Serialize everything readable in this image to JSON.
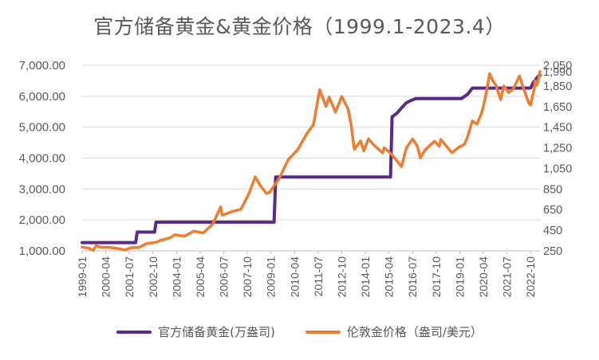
{
  "chart_data": {
    "type": "line",
    "title": "官方储备黄金&黄金价格（1999.1-2023.4）",
    "x_tick_labels": [
      "1999-01",
      "2000-04",
      "2001-07",
      "2002-10",
      "2004-01",
      "2005-04",
      "2006-07",
      "2007-10",
      "2009-01",
      "2010-04",
      "2011-07",
      "2012-10",
      "2014-01",
      "2015-04",
      "2016-07",
      "2017-10",
      "2019-01",
      "2020-04",
      "2021-07",
      "2022-10"
    ],
    "y_left": {
      "min": 1000,
      "max": 7000,
      "ticks": [
        "1,000.00",
        "2,000.00",
        "3,000.00",
        "4,000.00",
        "5,000.00",
        "6,000.00",
        "7,000.00"
      ]
    },
    "y_right": {
      "min": 250,
      "max": 2050,
      "ticks": [
        "250",
        "450",
        "650",
        "850",
        "1,050",
        "1,250",
        "1,450",
        "1,650",
        "1,850",
        "1,990",
        "2,050"
      ]
    },
    "grid": "horizontal",
    "legend_position": "bottom",
    "series": [
      {
        "name": "官方储备黄金(万盎司)",
        "axis": "left",
        "color": "#5b2a86",
        "points": [
          [
            "1999-01",
            1267
          ],
          [
            "2001-11",
            1267
          ],
          [
            "2001-12",
            1608
          ],
          [
            "2002-11",
            1608
          ],
          [
            "2002-12",
            1929
          ],
          [
            "2009-03",
            1929
          ],
          [
            "2009-04",
            3389
          ],
          [
            "2015-05",
            3389
          ],
          [
            "2015-06",
            5332
          ],
          [
            "2015-09",
            5447
          ],
          [
            "2015-12",
            5623
          ],
          [
            "2016-03",
            5786
          ],
          [
            "2016-06",
            5862
          ],
          [
            "2016-09",
            5924
          ],
          [
            "2016-12",
            5924
          ],
          [
            "2019-02",
            5924
          ],
          [
            "2019-06",
            6061
          ],
          [
            "2019-09",
            6264
          ],
          [
            "2022-10",
            6264
          ],
          [
            "2022-11",
            6367
          ],
          [
            "2022-12",
            6464
          ],
          [
            "2023-01",
            6512
          ],
          [
            "2023-02",
            6592
          ],
          [
            "2023-03",
            6650
          ],
          [
            "2023-04",
            6676
          ]
        ]
      },
      {
        "name": "伦敦金价格（盎司/美元）",
        "axis": "right",
        "color": "#ed7d31",
        "points": [
          [
            "1999-01",
            287
          ],
          [
            "1999-05",
            277
          ],
          [
            "1999-08",
            256
          ],
          [
            "1999-10",
            300
          ],
          [
            "2000-01",
            284
          ],
          [
            "2000-06",
            285
          ],
          [
            "2000-12",
            272
          ],
          [
            "2001-04",
            260
          ],
          [
            "2001-09",
            283
          ],
          [
            "2002-01",
            282
          ],
          [
            "2002-06",
            321
          ],
          [
            "2002-12",
            333
          ],
          [
            "2003-03",
            352
          ],
          [
            "2003-09",
            378
          ],
          [
            "2003-12",
            407
          ],
          [
            "2004-06",
            392
          ],
          [
            "2004-12",
            441
          ],
          [
            "2005-06",
            424
          ],
          [
            "2005-12",
            510
          ],
          [
            "2006-05",
            676
          ],
          [
            "2006-06",
            596
          ],
          [
            "2006-12",
            629
          ],
          [
            "2007-06",
            655
          ],
          [
            "2007-11",
            806
          ],
          [
            "2008-03",
            968
          ],
          [
            "2008-06",
            889
          ],
          [
            "2008-10",
            807
          ],
          [
            "2008-12",
            816
          ],
          [
            "2009-06",
            945
          ],
          [
            "2009-12",
            1134
          ],
          [
            "2010-06",
            1232
          ],
          [
            "2010-12",
            1391
          ],
          [
            "2011-04",
            1475
          ],
          [
            "2011-08",
            1813
          ],
          [
            "2011-09",
            1772
          ],
          [
            "2011-12",
            1652
          ],
          [
            "2012-02",
            1743
          ],
          [
            "2012-06",
            1597
          ],
          [
            "2012-10",
            1747
          ],
          [
            "2013-02",
            1627
          ],
          [
            "2013-04",
            1468
          ],
          [
            "2013-06",
            1234
          ],
          [
            "2013-10",
            1316
          ],
          [
            "2013-12",
            1221
          ],
          [
            "2014-03",
            1336
          ],
          [
            "2014-06",
            1282
          ],
          [
            "2014-12",
            1201
          ],
          [
            "2015-01",
            1251
          ],
          [
            "2015-06",
            1182
          ],
          [
            "2015-11",
            1086
          ],
          [
            "2015-12",
            1068
          ],
          [
            "2016-03",
            1246
          ],
          [
            "2016-07",
            1336
          ],
          [
            "2016-10",
            1267
          ],
          [
            "2016-12",
            1151
          ],
          [
            "2017-03",
            1231
          ],
          [
            "2017-09",
            1314
          ],
          [
            "2017-12",
            1264
          ],
          [
            "2018-01",
            1331
          ],
          [
            "2018-08",
            1202
          ],
          [
            "2018-12",
            1250
          ],
          [
            "2019-04",
            1285
          ],
          [
            "2019-06",
            1359
          ],
          [
            "2019-09",
            1510
          ],
          [
            "2019-12",
            1480
          ],
          [
            "2020-03",
            1593
          ],
          [
            "2020-05",
            1715
          ],
          [
            "2020-08",
            1969
          ],
          [
            "2020-10",
            1900
          ],
          [
            "2020-12",
            1858
          ],
          [
            "2021-03",
            1718
          ],
          [
            "2021-05",
            1850
          ],
          [
            "2021-08",
            1785
          ],
          [
            "2021-11",
            1820
          ],
          [
            "2022-03",
            1948
          ],
          [
            "2022-05",
            1848
          ],
          [
            "2022-09",
            1680
          ],
          [
            "2022-10",
            1665
          ],
          [
            "2022-12",
            1798
          ],
          [
            "2023-01",
            1898
          ],
          [
            "2023-02",
            1855
          ],
          [
            "2023-03",
            1913
          ],
          [
            "2023-04",
            1990
          ]
        ]
      }
    ]
  }
}
